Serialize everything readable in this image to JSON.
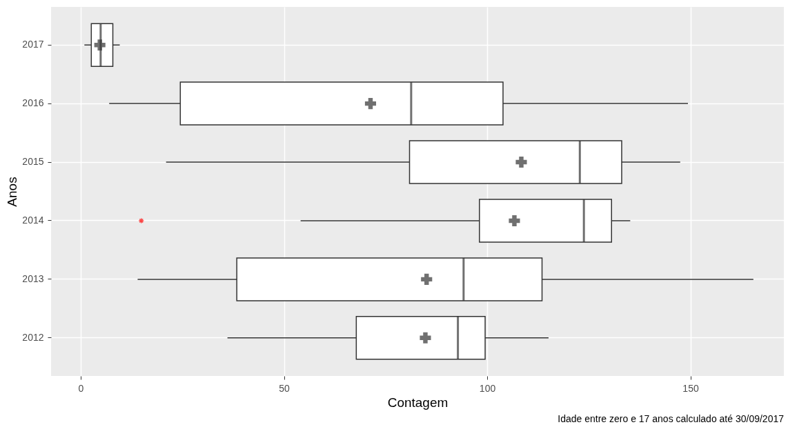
{
  "chart_data": {
    "type": "box",
    "orientation": "horizontal",
    "xlabel": "Contagem",
    "ylabel": "Anos",
    "categories": [
      "2017",
      "2016",
      "2015",
      "2014",
      "2013",
      "2012"
    ],
    "boxes": [
      {
        "low": 0.9,
        "q1": 2.6,
        "median": 4.9,
        "q3": 7.9,
        "high": 9.6,
        "mean": 4.7
      },
      {
        "low": 7,
        "q1": 24.5,
        "median": 81.3,
        "q3": 103.9,
        "high": 149.4,
        "mean": 71.3
      },
      {
        "low": 21,
        "q1": 80.9,
        "median": 122.8,
        "q3": 133.1,
        "high": 147.5,
        "mean": 108.4
      },
      {
        "low": 54.1,
        "q1": 98.1,
        "median": 123.8,
        "q3": 130.6,
        "high": 135.2,
        "mean": 106.7,
        "outliers": [
          14.9
        ]
      },
      {
        "low": 14,
        "q1": 38.4,
        "median": 94.2,
        "q3": 113.5,
        "high": 165.5,
        "mean": 85.1
      },
      {
        "low": 36.1,
        "q1": 67.8,
        "median": 92.8,
        "q3": 99.5,
        "high": 115.1,
        "mean": 84.8
      }
    ],
    "xlim": [
      -7.3,
      173
    ],
    "xticks": [
      0,
      50,
      100,
      150
    ],
    "grid": true,
    "marker": "cross",
    "annotations": [
      "Idade entre zero e 17 anos calculado até 30/09/2017"
    ]
  }
}
